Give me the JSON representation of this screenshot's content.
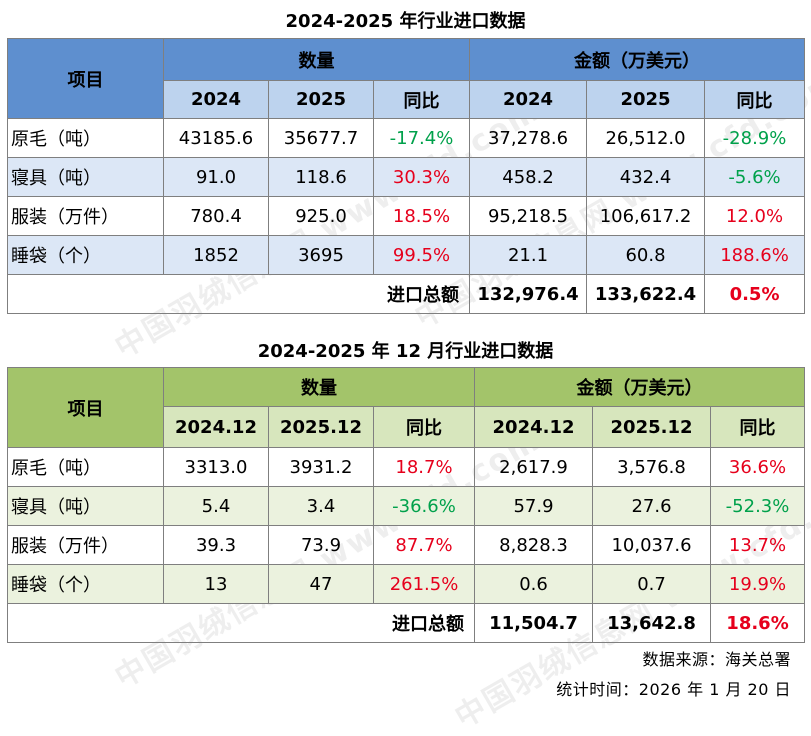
{
  "table1": {
    "title": "2024-2025 年行业进口数据",
    "item_header": "项目",
    "qty_header": "数量",
    "amt_header": "金额（万美元）",
    "sub_headers": [
      "2024",
      "2025",
      "同比",
      "2024",
      "2025",
      "同比"
    ],
    "rows": [
      {
        "label": "原毛（吨）",
        "v": [
          "43185.6",
          "35677.7",
          "-17.4%",
          "37,278.6",
          "26,512.0",
          "-28.9%"
        ]
      },
      {
        "label": "寝具（吨）",
        "v": [
          "91.0",
          "118.6",
          "30.3%",
          "458.2",
          "432.4",
          "-5.6%"
        ]
      },
      {
        "label": "服装（万件）",
        "v": [
          "780.4",
          "925.0",
          "18.5%",
          "95,218.5",
          "106,617.2",
          "12.0%"
        ]
      },
      {
        "label": "睡袋（个）",
        "v": [
          "1852",
          "3695",
          "99.5%",
          "21.1",
          "60.8",
          "188.6%"
        ]
      }
    ],
    "total": {
      "label": "进口总额",
      "v2024": "132,976.4",
      "v2025": "133,622.4",
      "yoy": "0.5%"
    }
  },
  "table2": {
    "title": "2024-2025 年 12 月行业进口数据",
    "item_header": "项目",
    "qty_header": "数量",
    "amt_header": "金额（万美元）",
    "sub_headers": [
      "2024.12",
      "2025.12",
      "同比",
      "2024.12",
      "2025.12",
      "同比"
    ],
    "rows": [
      {
        "label": "原毛（吨）",
        "v": [
          "3313.0",
          "3931.2",
          "18.7%",
          "2,617.9",
          "3,576.8",
          "36.6%"
        ]
      },
      {
        "label": "寝具（吨）",
        "v": [
          "5.4",
          "3.4",
          "-36.6%",
          "57.9",
          "27.6",
          "-52.3%"
        ]
      },
      {
        "label": "服装（万件）",
        "v": [
          "39.3",
          "73.9",
          "87.7%",
          "8,828.3",
          "10,037.6",
          "13.7%"
        ]
      },
      {
        "label": "睡袋（个）",
        "v": [
          "13",
          "47",
          "261.5%",
          "0.6",
          "0.7",
          "19.9%"
        ]
      }
    ],
    "total": {
      "label": "进口总额",
      "v2024": "11,504.7",
      "v2025": "13,642.8",
      "yoy": "18.6%"
    }
  },
  "source_note": "数据来源：海关总署",
  "date_note": "统计时间：2026 年 1 月 20 日",
  "watermark": "中国羽绒信息网 www.cfd.com.cn",
  "colors": {
    "positive": "#e6001c",
    "negative": "#00a14b"
  }
}
